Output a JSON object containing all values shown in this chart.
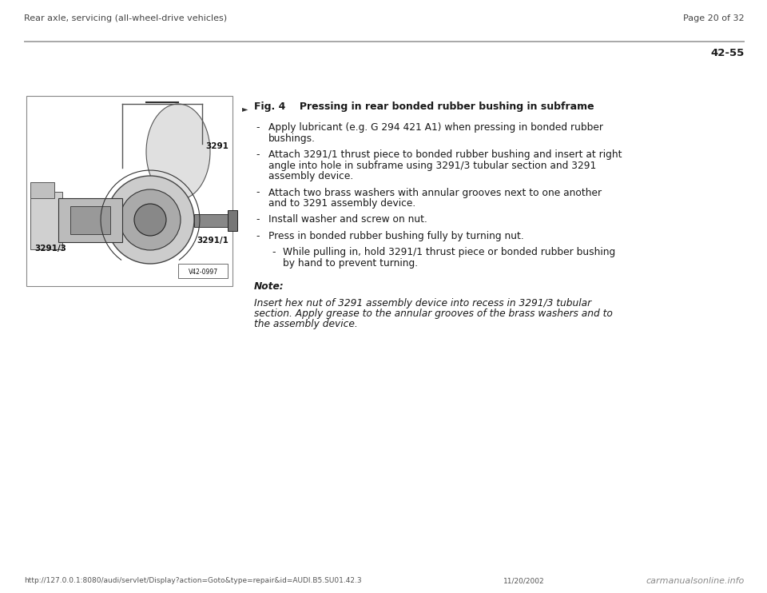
{
  "header_left": "Rear axle, servicing (all-wheel-drive vehicles)",
  "header_right": "Page 20 of 32",
  "page_number": "42-55",
  "fig_label": "Fig. 4",
  "fig_title": "Pressing in rear bonded rubber bushing in subframe",
  "bullets": [
    [
      "Apply lubricant (e.g. G 294 421 A1) when pressing in bonded rubber",
      "bushings."
    ],
    [
      "Attach 3291/1 thrust piece to bonded rubber bushing and insert at right",
      "angle into hole in subframe using 3291/3 tubular section and 3291",
      "assembly device."
    ],
    [
      "Attach two brass washers with annular grooves next to one another",
      "and to 3291 assembly device."
    ],
    [
      "Install washer and screw on nut."
    ],
    [
      "Press in bonded rubber bushing fully by turning nut."
    ]
  ],
  "sub_bullet": [
    "While pulling in, hold 3291/1 thrust piece or bonded rubber bushing",
    "by hand to prevent turning."
  ],
  "note_label": "Note:",
  "note_lines": [
    "Insert hex nut of 3291 assembly device into recess in 3291/3 tubular",
    "section. Apply grease to the annular grooves of the brass washers and to",
    "the assembly device."
  ],
  "footer_url": "http://127.0.0.1:8080/audi/servlet/Display?action=Goto&type=repair&id=AUDI.B5.SU01.42.3",
  "footer_date": "11/20/2002",
  "footer_brand": "carmanualsonline.info",
  "bg_color": "#ffffff",
  "text_color": "#1a1a1a",
  "header_color": "#444444",
  "line_color": "#999999",
  "img_border_color": "#888888",
  "img_fill_color": "#e8e8e8"
}
